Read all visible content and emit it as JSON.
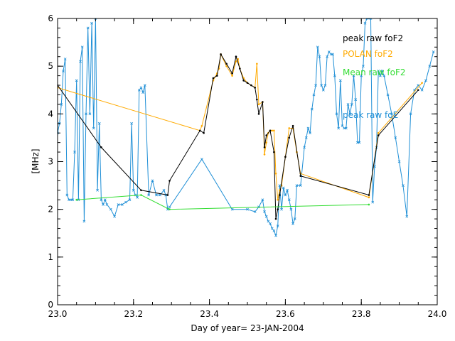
{
  "chart_data": {
    "type": "line",
    "title": "",
    "xlabel": "Day of year= 23-JAN-2004",
    "ylabel": "[MHz]",
    "xlim": [
      23.0,
      24.0
    ],
    "ylim": [
      0,
      6
    ],
    "xticks": [
      23.0,
      23.2,
      23.4,
      23.6,
      23.8,
      24.0
    ],
    "xtick_labels": [
      "23.0",
      "23.2",
      "23.4",
      "23.6",
      "23.8",
      "24.0"
    ],
    "yticks": [
      0,
      1,
      2,
      3,
      4,
      5,
      6
    ],
    "ytick_labels": [
      "0",
      "1",
      "2",
      "3",
      "4",
      "5",
      "6"
    ],
    "legend_position": "top-right",
    "series": [
      {
        "name": "peak raw foE",
        "color": "#1f8fd6",
        "marker": "x",
        "x": [
          23.0,
          23.005,
          23.01,
          23.015,
          23.02,
          23.025,
          23.03,
          23.035,
          23.04,
          23.045,
          23.05,
          23.055,
          23.06,
          23.065,
          23.07,
          23.075,
          23.08,
          23.085,
          23.09,
          23.095,
          23.1,
          23.105,
          23.11,
          23.115,
          23.12,
          23.125,
          23.13,
          23.14,
          23.15,
          23.16,
          23.17,
          23.18,
          23.19,
          23.195,
          23.2,
          23.205,
          23.21,
          23.215,
          23.22,
          23.225,
          23.23,
          23.24,
          23.25,
          23.26,
          23.27,
          23.28,
          23.285,
          23.29,
          23.295,
          23.38,
          23.46,
          23.5,
          23.52,
          23.53,
          23.54,
          23.545,
          23.55,
          23.555,
          23.56,
          23.565,
          23.57,
          23.575,
          23.58,
          23.585,
          23.59,
          23.595,
          23.6,
          23.605,
          23.61,
          23.615,
          23.62,
          23.625,
          23.63,
          23.64,
          23.65,
          23.655,
          23.66,
          23.665,
          23.67,
          23.675,
          23.68,
          23.685,
          23.69,
          23.695,
          23.7,
          23.705,
          23.71,
          23.715,
          23.72,
          23.725,
          23.73,
          23.735,
          23.74,
          23.745,
          23.75,
          23.755,
          23.76,
          23.765,
          23.77,
          23.775,
          23.78,
          23.785,
          23.79,
          23.795,
          23.8,
          23.805,
          23.81,
          23.815,
          23.82,
          23.825,
          23.83,
          23.835,
          23.84,
          23.845,
          23.85,
          23.855,
          23.86,
          23.87,
          23.88,
          23.89,
          23.9,
          23.91,
          23.92,
          23.93,
          23.94,
          23.95,
          23.96,
          23.97,
          23.98,
          23.99
        ],
        "values": [
          3.6,
          3.8,
          4.2,
          4.9,
          5.15,
          2.3,
          2.2,
          2.2,
          2.2,
          3.2,
          4.7,
          2.2,
          5.1,
          5.4,
          1.75,
          4.0,
          5.8,
          4.0,
          5.9,
          3.7,
          6.0,
          2.4,
          3.8,
          2.2,
          2.1,
          2.2,
          2.1,
          2.0,
          1.85,
          2.1,
          2.1,
          2.15,
          2.2,
          3.8,
          2.4,
          2.3,
          2.25,
          4.5,
          4.55,
          4.45,
          4.6,
          2.3,
          2.6,
          2.3,
          2.3,
          2.4,
          2.3,
          2.0,
          2.05,
          3.05,
          2.0,
          2.0,
          1.95,
          2.05,
          2.2,
          1.95,
          1.85,
          1.75,
          1.7,
          1.6,
          1.55,
          1.45,
          1.65,
          2.5,
          2.0,
          2.45,
          2.3,
          2.4,
          2.2,
          2.0,
          1.7,
          1.8,
          2.5,
          2.5,
          3.3,
          3.5,
          3.7,
          3.6,
          4.1,
          4.4,
          4.6,
          5.4,
          5.2,
          4.6,
          4.5,
          4.6,
          5.2,
          5.3,
          5.25,
          5.25,
          4.8,
          4.0,
          3.7,
          4.7,
          3.75,
          3.7,
          3.7,
          4.2,
          4.0,
          4.2,
          4.8,
          4.3,
          3.4,
          3.4,
          4.8,
          5.0,
          5.9,
          6.0,
          6.0,
          6.0,
          2.15,
          2.9,
          3.3,
          4.9,
          4.8,
          4.9,
          4.8,
          4.4,
          4.0,
          3.5,
          3.0,
          2.5,
          1.85,
          4.0,
          4.5,
          4.6,
          4.5,
          4.7,
          5.0,
          5.3
        ]
      },
      {
        "name": "POLAN foF2",
        "color": "#ffaa00",
        "marker": "dot",
        "x": [
          23.0,
          23.375,
          23.38,
          23.41,
          23.42,
          23.425,
          23.43,
          23.445,
          23.46,
          23.47,
          23.475,
          23.48,
          23.49,
          23.5,
          23.51,
          23.52,
          23.525,
          23.53,
          23.54,
          23.545,
          23.55,
          23.555,
          23.56,
          23.565,
          23.57,
          23.575,
          23.58,
          23.585,
          23.59,
          23.6,
          23.61,
          23.62,
          23.63,
          23.64,
          23.82,
          23.845,
          23.96
        ],
        "values": [
          4.55,
          3.65,
          3.75,
          4.7,
          4.85,
          4.95,
          5.25,
          5.0,
          4.8,
          5.1,
          5.15,
          4.95,
          4.75,
          4.65,
          4.6,
          4.55,
          5.05,
          4.2,
          4.25,
          3.15,
          3.4,
          3.6,
          3.65,
          3.65,
          3.65,
          2.75,
          2.2,
          2.4,
          2.5,
          3.1,
          3.7,
          3.7,
          3.2,
          2.75,
          2.25,
          3.6,
          4.65
        ]
      },
      {
        "name": "peak raw foF2",
        "color": "#000000",
        "marker": "dot",
        "x": [
          23.0,
          23.115,
          23.22,
          23.29,
          23.295,
          23.375,
          23.385,
          23.41,
          23.42,
          23.43,
          23.445,
          23.46,
          23.47,
          23.48,
          23.49,
          23.5,
          23.51,
          23.52,
          23.525,
          23.53,
          23.54,
          23.545,
          23.55,
          23.56,
          23.57,
          23.575,
          23.58,
          23.585,
          23.6,
          23.61,
          23.62,
          23.64,
          23.82,
          23.845,
          23.95
        ],
        "values": [
          4.6,
          3.3,
          2.4,
          2.3,
          2.6,
          3.65,
          3.6,
          4.75,
          4.8,
          5.25,
          5.05,
          4.85,
          5.2,
          4.95,
          4.7,
          4.65,
          4.6,
          4.55,
          4.3,
          4.0,
          4.25,
          3.3,
          3.55,
          3.65,
          3.2,
          1.8,
          2.0,
          2.3,
          3.1,
          3.5,
          3.75,
          2.7,
          2.3,
          3.55,
          4.5
        ]
      },
      {
        "name": "Mean raw foF2",
        "color": "#33dd33",
        "marker": "dot",
        "x": [
          23.05,
          23.22,
          23.295,
          23.82
        ],
        "values": [
          2.2,
          2.3,
          2.0,
          2.1
        ]
      }
    ],
    "legend": [
      {
        "label": "peak raw foF2",
        "color": "#000000"
      },
      {
        "label": "POLAN foF2",
        "color": "#ffaa00"
      },
      {
        "label": "Mean raw foF2",
        "color": "#33dd33"
      },
      {
        "label": "peak raw foE",
        "color": "#1f8fd6"
      }
    ]
  }
}
